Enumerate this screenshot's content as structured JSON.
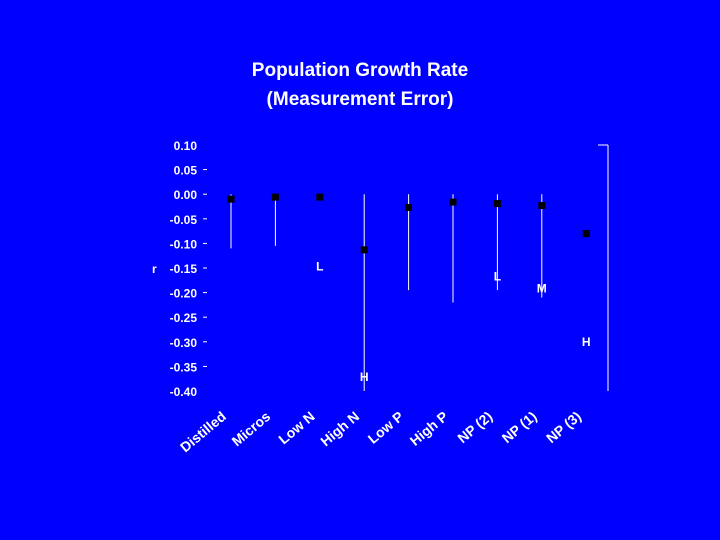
{
  "slide": {
    "title_line1": "Population Growth Rate",
    "title_line2": "(Measurement Error)"
  },
  "colors": {
    "background": "#0000ff",
    "text": "#ffffff",
    "marker": "#000000"
  },
  "chart_data": {
    "type": "scatter",
    "title": "Population Growth Rate (Measurement Error)",
    "ylabel": "r",
    "ylim": [
      -0.4,
      0.1
    ],
    "yticks": [
      "0.10",
      "0.05",
      "0.00",
      "-0.05",
      "-0.10",
      "-0.15",
      "-0.20",
      "-0.25",
      "-0.30",
      "-0.35",
      "-0.40"
    ],
    "categories": [
      "Distilled",
      "Micros",
      "Low N",
      "High N",
      "Low P",
      "High P",
      "NP (2)",
      "NP (1)",
      "NP (3)"
    ],
    "series": [
      {
        "values": [
          -0.01,
          -0.006,
          -0.006,
          -0.113,
          -0.027,
          -0.016,
          -0.019,
          -0.023,
          -0.08
        ],
        "error_low": [
          -0.11,
          -0.105,
          null,
          -0.4,
          -0.195,
          -0.22,
          -0.195,
          -0.21,
          null
        ],
        "error_high": [
          0.0,
          0.0,
          null,
          0.0,
          0.0,
          0.0,
          0.0,
          0.0,
          null
        ]
      }
    ],
    "annotations": [
      {
        "text": "L",
        "category": "Low N",
        "y": -0.145
      },
      {
        "text": "H",
        "category": "High N",
        "y": -0.37
      },
      {
        "text": "L",
        "category": "NP (2)",
        "y": -0.165
      },
      {
        "text": "M",
        "category": "NP (1)",
        "y": -0.19
      },
      {
        "text": "H",
        "category": "NP (3)",
        "y": -0.298
      }
    ],
    "grid": false
  }
}
